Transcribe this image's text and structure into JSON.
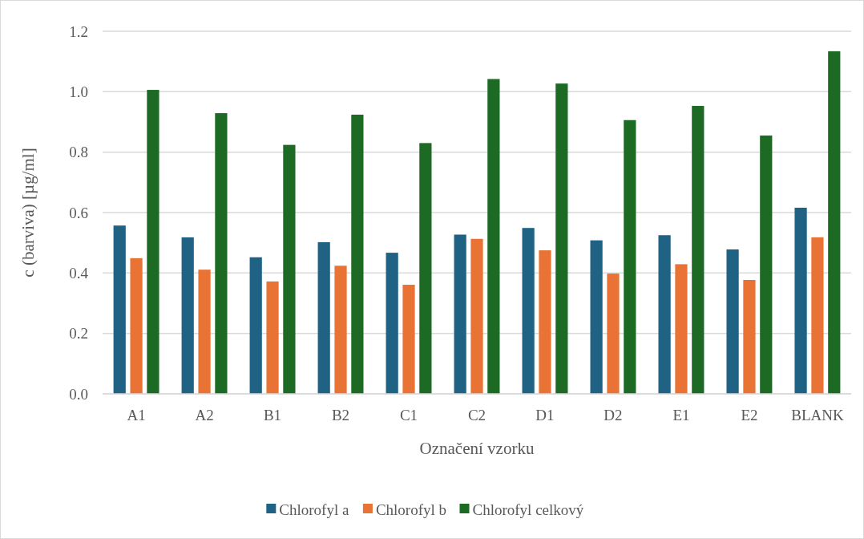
{
  "chart_data": {
    "type": "bar",
    "xlabel": "Označení vzorku",
    "ylabel": "c (barviva) [µg/ml]",
    "categories": [
      "A1",
      "A2",
      "B1",
      "B2",
      "C1",
      "C2",
      "D1",
      "D2",
      "E1",
      "E2",
      "BLANK"
    ],
    "series": [
      {
        "name": "Chlorofyl a",
        "color": "#1f6284",
        "values": [
          0.557,
          0.518,
          0.452,
          0.502,
          0.467,
          0.527,
          0.549,
          0.508,
          0.525,
          0.478,
          0.616
        ]
      },
      {
        "name": "Chlorofyl b",
        "color": "#e97334",
        "values": [
          0.449,
          0.411,
          0.372,
          0.424,
          0.361,
          0.513,
          0.475,
          0.398,
          0.429,
          0.377,
          0.518
        ]
      },
      {
        "name": "Chlorofyl celkový",
        "color": "#1d6a25",
        "values": [
          1.006,
          0.929,
          0.824,
          0.924,
          0.83,
          1.042,
          1.027,
          0.906,
          0.953,
          0.855,
          1.134
        ]
      }
    ],
    "ylim": [
      0,
      1.2
    ],
    "yticks": [
      {
        "value": 0,
        "label": "0.0"
      },
      0.2,
      0.4,
      0.6,
      0.8,
      {
        "value": 1,
        "label": "1.0"
      },
      1.2
    ],
    "grid": "y",
    "legend": "bottom"
  }
}
